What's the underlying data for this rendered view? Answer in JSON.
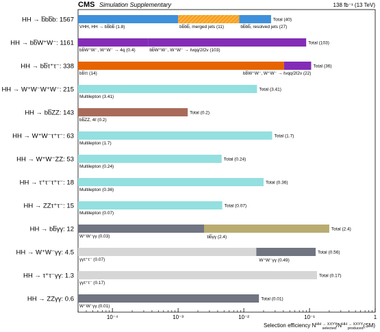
{
  "header": {
    "experiment": "CMS",
    "status": "Simulation Supplementary",
    "energy": "138 fb⁻¹ (13 TeV)"
  },
  "chart_data": {
    "type": "bar",
    "orientation": "horizontal",
    "x_scale": "log",
    "xlim": [
      3e-05,
      1
    ],
    "xlabel": "Selection efficiency N",
    "xlabel_sup_num": "HH → XXYY",
    "xlabel_sub_num": "selected",
    "xlabel_mid": "/N",
    "xlabel_sup_den": "HH → XXYY",
    "xlabel_sub_den": "produced",
    "xlabel_tail": "(SM)",
    "xticks": [
      {
        "value": 0.0001,
        "label": "10⁻⁴"
      },
      {
        "value": 0.001,
        "label": "10⁻³"
      },
      {
        "value": 0.01,
        "label": "10⁻²"
      },
      {
        "value": 0.1,
        "label": "10⁻¹"
      },
      {
        "value": 1,
        "label": "1"
      }
    ],
    "categories": [
      {
        "label": "HH → b̅bb̅b: 1567",
        "segments": [
          {
            "name": "VHH, HH → bb̅bb̅ (1.8)",
            "value": 0.001,
            "color": "#3f90da",
            "label_at": "start"
          },
          {
            "name": "bb̅bb̅, merged jets (11)",
            "value": 0.0085,
            "color": "#f8a01c",
            "hatch": true,
            "label_at": "start"
          },
          {
            "name": "bb̅bb̅, resolved jets (27)",
            "value": 0.026,
            "color": "#3f90da",
            "label_at": "start"
          }
        ],
        "total": "Total (40)"
      },
      {
        "label": "HH → bb̅W⁺W⁻: 1161",
        "segments": [
          {
            "name": "bb̅W⁺W⁻, W⁺W⁻ → 4q (0.4)",
            "value": 0.00035,
            "color": "#832db6",
            "label_at": "start"
          },
          {
            "name": "bb̅W⁺W⁻, W⁺W⁻ → ℓνqq/2ℓ2ν (103)",
            "value": 0.089,
            "color": "#832db6",
            "label_at": "start"
          }
        ],
        "total": "Total (103)"
      },
      {
        "label": "HH → bb̅τ⁺τ⁻: 338",
        "segments": [
          {
            "name": "bb̅ττ (14)",
            "value": 0.041,
            "color": "#e76300",
            "label_at": "start"
          },
          {
            "name": "bb̅W⁺W⁻, W⁺W⁻ → ℓνqq/2ℓ2ν (22)",
            "value": 0.106,
            "color": "#832db6",
            "label_at": "end"
          }
        ],
        "total": "Total (36)"
      },
      {
        "label": "HH → W⁺W⁻W⁺W⁻: 215",
        "segments": [
          {
            "name": "Multilepton (3.41)",
            "value": 0.0159,
            "color": "#94dfe0",
            "label_at": "start"
          }
        ],
        "total": "Total (3.41)"
      },
      {
        "label": "HH → bb̅ZZ: 143",
        "segments": [
          {
            "name": "bb̅ZZ, 4ℓ (0.2)",
            "value": 0.0014,
            "color": "#a96b59",
            "label_at": "start"
          }
        ],
        "total": "Total (0.2)"
      },
      {
        "label": "HH → W⁺W⁻τ⁺τ⁻: 63",
        "segments": [
          {
            "name": "Multilepton (1.7)",
            "value": 0.027,
            "color": "#94dfe0",
            "label_at": "start"
          }
        ],
        "total": "Total (1.7)"
      },
      {
        "label": "HH → W⁺W⁻ZZ: 53",
        "segments": [
          {
            "name": "Multilepton (0.24)",
            "value": 0.0046,
            "color": "#94dfe0",
            "label_at": "start"
          }
        ],
        "total": "Total (0.24)"
      },
      {
        "label": "HH → τ⁺τ⁻τ⁺τ⁻: 18",
        "segments": [
          {
            "name": "Multilepton (0.36)",
            "value": 0.02,
            "color": "#94dfe0",
            "label_at": "start"
          }
        ],
        "total": "Total (0.36)"
      },
      {
        "label": "HH → ZZτ⁺τ⁻: 15",
        "segments": [
          {
            "name": "Multilepton (0.07)",
            "value": 0.0047,
            "color": "#94dfe0",
            "label_at": "start"
          }
        ],
        "total": "Total (0.07)"
      },
      {
        "label": "HH → bb̅γγ: 12",
        "segments": [
          {
            "name": "W⁺W⁻γγ (0.03)",
            "value": 0.0025,
            "color": "#717581",
            "label_at": "start"
          },
          {
            "name": "bb̅γγ (2.4)",
            "value": 0.2,
            "color": "#b9ac70",
            "label_at": "below-start"
          }
        ],
        "total": "Total (2.4)"
      },
      {
        "label": "HH → W⁺W⁻γγ: 4.5",
        "segments": [
          {
            "name": "γγτ⁺τ⁻ (0.07)",
            "value": 0.0155,
            "color": "#d6d6d6",
            "label_at": "start"
          },
          {
            "name": "W⁺W⁻γγ (0.49)",
            "value": 0.124,
            "color": "#717581",
            "label_at": "below-start"
          }
        ],
        "total": "Total (0.56)"
      },
      {
        "label": "HH → τ⁺τ⁻γγ: 1.3",
        "segments": [
          {
            "name": "γγτ⁺τ⁻ (0.17)",
            "value": 0.13,
            "color": "#d6d6d6",
            "label_at": "start"
          }
        ],
        "total": "Total (0.17)"
      },
      {
        "label": "HH → ZZγγ: 0.6",
        "segments": [
          {
            "name": "W⁺W⁻γγ (0.01)",
            "value": 0.017,
            "color": "#717581",
            "label_at": "start"
          }
        ],
        "total": "Total (0.01)"
      }
    ]
  }
}
